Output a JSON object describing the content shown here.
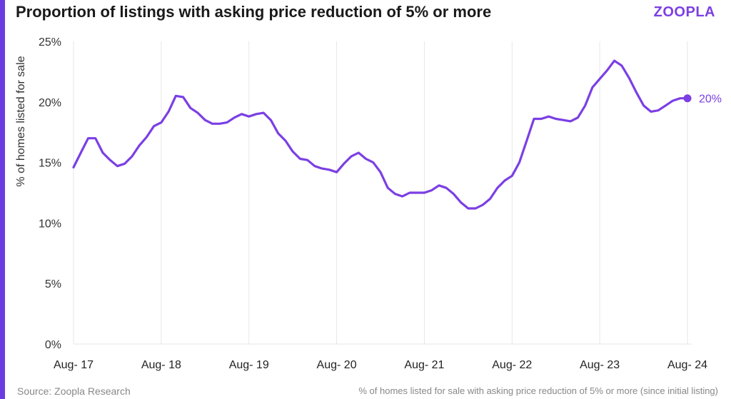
{
  "title": "Proportion of listings with asking price reduction of 5% or more",
  "logo": "ZOOPLA",
  "footer": {
    "source": "Source: Zoopla Research",
    "note": "% of homes listed for sale with asking price reduction of 5% or more (since initial listing)"
  },
  "colors": {
    "accent": "#6c3ce0",
    "line": "#7b3fe4",
    "grid": "#e6e6e6"
  },
  "chart_data": {
    "type": "line",
    "title": "Proportion of listings with asking price reduction of 5% or more",
    "xlabel": "",
    "ylabel": "% of homes listed for sale",
    "ylim": [
      0,
      25
    ],
    "yticks": [
      "0%",
      "5%",
      "10%",
      "15%",
      "20%",
      "25%"
    ],
    "xticks": [
      "Aug- 17",
      "Aug- 18",
      "Aug- 19",
      "Aug- 20",
      "Aug- 21",
      "Aug- 22",
      "Aug- 23",
      "Aug- 24"
    ],
    "end_label": "20%",
    "series": [
      {
        "name": "% of homes listed for sale with asking price reduction of 5% or more",
        "values": [
          14.6,
          15.8,
          17.0,
          17.0,
          15.8,
          15.2,
          14.7,
          14.9,
          15.5,
          16.4,
          17.1,
          18.0,
          18.3,
          19.2,
          20.5,
          20.4,
          19.5,
          19.1,
          18.5,
          18.2,
          18.2,
          18.3,
          18.7,
          19.0,
          18.8,
          19.0,
          19.1,
          18.5,
          17.4,
          16.8,
          15.9,
          15.3,
          15.2,
          14.7,
          14.5,
          14.4,
          14.2,
          14.9,
          15.5,
          15.8,
          15.3,
          15.0,
          14.2,
          12.9,
          12.4,
          12.2,
          12.5,
          12.5,
          12.5,
          12.7,
          13.1,
          12.9,
          12.4,
          11.7,
          11.2,
          11.2,
          11.5,
          12.0,
          12.9,
          13.5,
          13.9,
          15.0,
          16.8,
          18.6,
          18.6,
          18.8,
          18.6,
          18.5,
          18.4,
          18.7,
          19.7,
          21.2,
          21.9,
          22.6,
          23.4,
          23.0,
          22.0,
          20.8,
          19.7,
          19.2,
          19.3,
          19.7,
          20.1,
          20.3,
          20.3
        ]
      }
    ]
  }
}
